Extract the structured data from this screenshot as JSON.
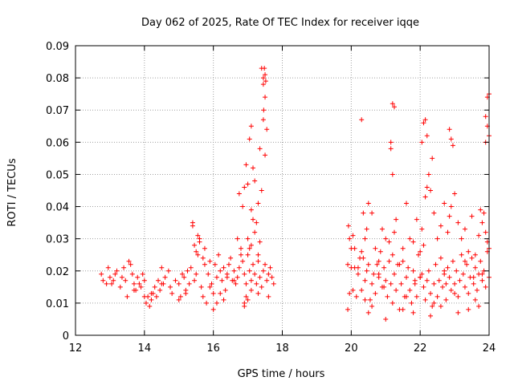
{
  "chart_data": {
    "type": "scatter",
    "title": "Day 062 of 2025, Rate Of TEC Index for receiver iqqe",
    "xlabel": "GPS time / hours",
    "ylabel": "ROTI / TECUs",
    "xlim": [
      12,
      24
    ],
    "ylim": [
      0,
      0.09
    ],
    "xticks": [
      12,
      14,
      16,
      18,
      20,
      22,
      24
    ],
    "yticks": [
      0,
      0.01,
      0.02,
      0.03,
      0.04,
      0.05,
      0.06,
      0.07,
      0.08,
      0.09
    ],
    "ytick_labels": [
      "0",
      "0.01",
      "0.02",
      "0.03",
      "0.04",
      "0.05",
      "0.06",
      "0.07",
      "0.08",
      "0.09"
    ],
    "grid": true,
    "marker": "+",
    "color": "#ff0000",
    "series": [
      {
        "name": "ROTI",
        "x": [
          12.75,
          12.8,
          12.9,
          12.95,
          13.0,
          13.05,
          13.1,
          13.15,
          13.2,
          13.3,
          13.35,
          13.4,
          13.45,
          13.5,
          13.55,
          13.6,
          13.65,
          13.7,
          13.75,
          13.8,
          13.85,
          13.9,
          13.95,
          14.0,
          14.05,
          14.1,
          14.15,
          14.2,
          14.25,
          14.3,
          14.35,
          14.4,
          14.45,
          14.5,
          14.55,
          14.6,
          14.7,
          14.75,
          14.8,
          14.9,
          15.0,
          15.05,
          15.1,
          15.15,
          15.2,
          15.25,
          15.3,
          15.35,
          15.4,
          15.45,
          15.5,
          15.55,
          15.6,
          15.65,
          15.7,
          15.75,
          15.8,
          15.85,
          15.9,
          15.95,
          16.0,
          16.05,
          16.1,
          16.15,
          16.2,
          16.25,
          16.3,
          16.35,
          16.4,
          16.45,
          16.5,
          16.55,
          16.6,
          16.65,
          16.7,
          16.75,
          16.8,
          16.85,
          16.9,
          16.95,
          17.0,
          17.05,
          17.1,
          17.15,
          17.2,
          17.25,
          17.3,
          17.35,
          17.4,
          17.45,
          17.5,
          17.55,
          17.6,
          17.65,
          17.7,
          17.75,
          16.7,
          16.75,
          16.8,
          16.85,
          16.9,
          16.95,
          17.0,
          17.05,
          17.1,
          17.15,
          17.2,
          17.25,
          17.3,
          17.35,
          17.4,
          17.45,
          17.5,
          17.55,
          17.5,
          17.45,
          17.4,
          17.45,
          17.5,
          17.48,
          17.52,
          17.46,
          17.0,
          17.05,
          17.1,
          17.1,
          17.15,
          17.2,
          17.3,
          17.35,
          16.9,
          16.95,
          17.0,
          15.4,
          15.45,
          15.5,
          15.55,
          15.6,
          15.7,
          15.75,
          16.0,
          16.1,
          16.2,
          16.3,
          13.7,
          14.0,
          14.2,
          14.5,
          15.0,
          15.2,
          15.9,
          16.4,
          16.6,
          16.9,
          17.1,
          17.3,
          17.6,
          19.9,
          19.92,
          19.95,
          20.0,
          20.05,
          20.1,
          20.15,
          20.2,
          20.25,
          20.3,
          20.35,
          20.4,
          20.45,
          20.5,
          20.55,
          20.6,
          20.65,
          20.7,
          20.75,
          20.8,
          20.85,
          20.9,
          20.95,
          21.0,
          21.05,
          21.1,
          21.15,
          21.2,
          21.25,
          21.3,
          21.35,
          21.4,
          21.45,
          21.5,
          21.55,
          21.6,
          21.65,
          21.7,
          21.75,
          21.8,
          21.85,
          21.9,
          21.95,
          22.0,
          22.05,
          22.1,
          22.15,
          22.2,
          22.25,
          22.3,
          22.35,
          22.4,
          22.45,
          22.5,
          22.55,
          22.6,
          22.65,
          22.7,
          22.75,
          22.8,
          22.85,
          22.9,
          22.95,
          23.0,
          23.05,
          23.1,
          23.15,
          23.2,
          23.25,
          23.3,
          23.35,
          23.4,
          23.45,
          23.5,
          23.55,
          23.6,
          23.65,
          23.7,
          23.75,
          23.8,
          23.85,
          23.9,
          23.95,
          24.0,
          19.9,
          19.95,
          20.0,
          20.1,
          20.3,
          20.35,
          20.4,
          20.45,
          20.5,
          20.6,
          20.7,
          20.8,
          20.9,
          21.0,
          21.1,
          21.2,
          21.25,
          21.3,
          21.5,
          21.6,
          21.7,
          21.8,
          21.9,
          22.0,
          22.05,
          22.1,
          22.15,
          22.2,
          22.25,
          22.3,
          22.35,
          22.4,
          22.5,
          22.6,
          22.7,
          22.8,
          22.85,
          22.9,
          23.0,
          23.1,
          23.2,
          23.3,
          23.4,
          23.5,
          23.6,
          23.7,
          23.75,
          23.8,
          23.85,
          23.9,
          23.95,
          24.0,
          20.3,
          21.15,
          21.2,
          21.25,
          21.2,
          21.15,
          22.05,
          22.1,
          22.15,
          22.2,
          22.85,
          22.9,
          22.95,
          23.9,
          23.95,
          24.0,
          23.95,
          23.9,
          24.0,
          20.5,
          20.6,
          21.0,
          21.5,
          21.8,
          22.3,
          22.6,
          23.1,
          23.4,
          23.7,
          20.2,
          20.8,
          21.4,
          22.0,
          22.7,
          23.3,
          23.8,
          20.4,
          21.6,
          22.4,
          23.0,
          23.6,
          20.05,
          20.95,
          21.85,
          22.75,
          23.55
        ],
        "y": [
          0.019,
          0.017,
          0.016,
          0.021,
          0.018,
          0.016,
          0.017,
          0.019,
          0.02,
          0.015,
          0.018,
          0.021,
          0.017,
          0.012,
          0.023,
          0.022,
          0.019,
          0.016,
          0.014,
          0.018,
          0.016,
          0.015,
          0.019,
          0.017,
          0.01,
          0.012,
          0.009,
          0.011,
          0.013,
          0.015,
          0.012,
          0.017,
          0.014,
          0.021,
          0.016,
          0.018,
          0.02,
          0.015,
          0.013,
          0.017,
          0.016,
          0.012,
          0.019,
          0.018,
          0.014,
          0.02,
          0.016,
          0.021,
          0.035,
          0.017,
          0.019,
          0.025,
          0.03,
          0.015,
          0.012,
          0.022,
          0.01,
          0.019,
          0.023,
          0.016,
          0.013,
          0.022,
          0.018,
          0.025,
          0.02,
          0.017,
          0.021,
          0.014,
          0.019,
          0.022,
          0.024,
          0.017,
          0.02,
          0.016,
          0.018,
          0.021,
          0.025,
          0.023,
          0.019,
          0.016,
          0.025,
          0.02,
          0.017,
          0.022,
          0.019,
          0.016,
          0.023,
          0.018,
          0.015,
          0.02,
          0.022,
          0.017,
          0.019,
          0.021,
          0.018,
          0.016,
          0.03,
          0.044,
          0.027,
          0.04,
          0.046,
          0.053,
          0.047,
          0.061,
          0.065,
          0.052,
          0.048,
          0.035,
          0.041,
          0.058,
          0.045,
          0.067,
          0.056,
          0.064,
          0.074,
          0.08,
          0.083,
          0.078,
          0.081,
          0.083,
          0.079,
          0.07,
          0.03,
          0.027,
          0.039,
          0.028,
          0.036,
          0.032,
          0.025,
          0.029,
          0.01,
          0.012,
          0.011,
          0.034,
          0.028,
          0.026,
          0.031,
          0.029,
          0.024,
          0.027,
          0.008,
          0.01,
          0.013,
          0.011,
          0.014,
          0.012,
          0.013,
          0.016,
          0.011,
          0.013,
          0.015,
          0.018,
          0.017,
          0.009,
          0.014,
          0.013,
          0.012,
          0.008,
          0.034,
          0.03,
          0.027,
          0.031,
          0.021,
          0.012,
          0.019,
          0.024,
          0.014,
          0.038,
          0.017,
          0.02,
          0.022,
          0.011,
          0.016,
          0.019,
          0.013,
          0.022,
          0.018,
          0.026,
          0.015,
          0.021,
          0.017,
          0.012,
          0.023,
          0.016,
          0.01,
          0.019,
          0.014,
          0.022,
          0.008,
          0.016,
          0.023,
          0.012,
          0.018,
          0.021,
          0.014,
          0.01,
          0.02,
          0.016,
          0.012,
          0.025,
          0.018,
          0.019,
          0.015,
          0.011,
          0.017,
          0.02,
          0.013,
          0.009,
          0.016,
          0.022,
          0.012,
          0.017,
          0.024,
          0.015,
          0.019,
          0.011,
          0.021,
          0.018,
          0.014,
          0.023,
          0.016,
          0.02,
          0.012,
          0.017,
          0.025,
          0.019,
          0.015,
          0.022,
          0.013,
          0.018,
          0.024,
          0.016,
          0.021,
          0.014,
          0.019,
          0.023,
          0.017,
          0.02,
          0.015,
          0.026,
          0.018,
          0.022,
          0.013,
          0.021,
          0.027,
          0.026,
          0.024,
          0.03,
          0.033,
          0.041,
          0.038,
          0.027,
          0.023,
          0.033,
          0.03,
          0.029,
          0.025,
          0.032,
          0.036,
          0.027,
          0.041,
          0.03,
          0.029,
          0.036,
          0.026,
          0.033,
          0.028,
          0.043,
          0.046,
          0.05,
          0.045,
          0.055,
          0.038,
          0.03,
          0.034,
          0.041,
          0.032,
          0.037,
          0.04,
          0.044,
          0.035,
          0.03,
          0.033,
          0.026,
          0.037,
          0.025,
          0.031,
          0.039,
          0.035,
          0.038,
          0.032,
          0.029,
          0.027,
          0.067,
          0.06,
          0.072,
          0.071,
          0.05,
          0.058,
          0.06,
          0.066,
          0.067,
          0.062,
          0.064,
          0.061,
          0.059,
          0.068,
          0.065,
          0.075,
          0.074,
          0.06,
          0.062,
          0.007,
          0.009,
          0.005,
          0.008,
          0.007,
          0.006,
          0.009,
          0.007,
          0.008,
          0.009,
          0.021,
          0.019,
          0.022,
          0.018,
          0.02,
          0.023,
          0.019,
          0.011,
          0.012,
          0.01,
          0.013,
          0.011,
          0.014,
          0.015,
          0.017,
          0.016,
          0.018
        ]
      }
    ]
  }
}
